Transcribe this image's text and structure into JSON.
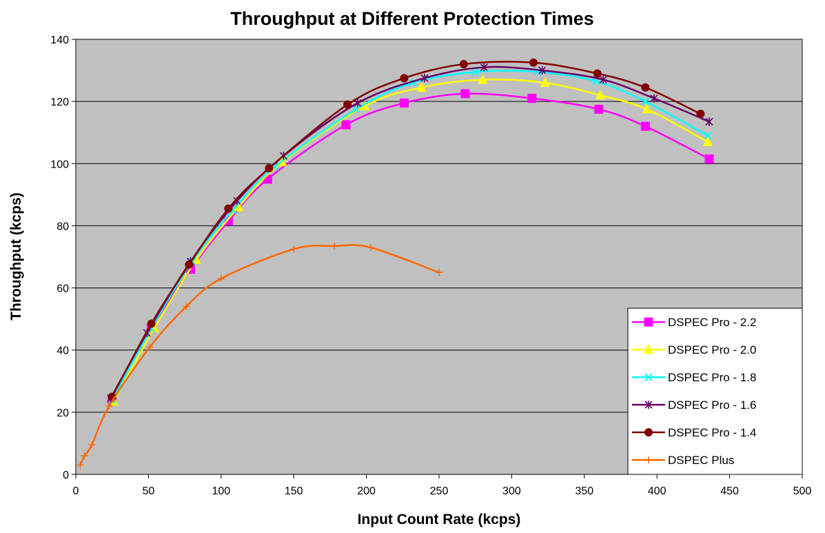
{
  "chart_data": {
    "type": "line",
    "title": "Throughput at Different Protection Times",
    "xlabel": "Input Count Rate (kcps)",
    "ylabel": "Throughput (kcps)",
    "xlim": [
      0,
      500
    ],
    "ylim": [
      0,
      140
    ],
    "xticks": [
      "0",
      "50",
      "100",
      "150",
      "200",
      "250",
      "300",
      "350",
      "400",
      "450",
      "500"
    ],
    "yticks": [
      "0",
      "20",
      "40",
      "60",
      "80",
      "100",
      "120",
      "140"
    ],
    "grid": "horizontal",
    "legend_position": "bottom-right",
    "plot_background": "#c0c0c0",
    "series": [
      {
        "name": "DSPEC Pro - 2.2",
        "color": "#ff00ff",
        "marker": "square",
        "points": [
          [
            25,
            24
          ],
          [
            52,
            47
          ],
          [
            79,
            66
          ],
          [
            105,
            81.5
          ],
          [
            132,
            95
          ],
          [
            186,
            112.5
          ],
          [
            226,
            119.5
          ],
          [
            268,
            122.5
          ],
          [
            314,
            121
          ],
          [
            360,
            117.5
          ],
          [
            392,
            112
          ],
          [
            436,
            101.5
          ]
        ]
      },
      {
        "name": "DSPEC Pro - 2.0",
        "color": "#ffff00",
        "marker": "triangle",
        "points": [
          [
            26,
            23.5
          ],
          [
            54,
            47
          ],
          [
            83,
            69
          ],
          [
            112,
            86
          ],
          [
            142,
            100.5
          ],
          [
            199,
            118.5
          ],
          [
            238,
            124.5
          ],
          [
            280,
            127
          ],
          [
            323,
            126
          ],
          [
            361,
            122
          ],
          [
            393,
            117.5
          ],
          [
            435,
            107
          ]
        ]
      },
      {
        "name": "DSPEC Pro - 1.8",
        "color": "#00ffff",
        "marker": "x",
        "points": [
          [
            25,
            24
          ],
          [
            52,
            47
          ],
          [
            80,
            68.5
          ],
          [
            108,
            85
          ],
          [
            137,
            99
          ],
          [
            193,
            117.5
          ],
          [
            232,
            126
          ],
          [
            275,
            129.5
          ],
          [
            318,
            129.5
          ],
          [
            358,
            126.5
          ],
          [
            392,
            120
          ],
          [
            435,
            109
          ]
        ]
      },
      {
        "name": "DSPEC Pro - 1.6",
        "color": "#660066",
        "marker": "star",
        "points": [
          [
            24,
            24.5
          ],
          [
            49,
            45.5
          ],
          [
            79,
            68.5
          ],
          [
            111,
            88
          ],
          [
            143,
            102.5
          ],
          [
            194,
            119.5
          ],
          [
            240,
            127.5
          ],
          [
            281,
            131
          ],
          [
            321,
            130
          ],
          [
            363,
            127
          ],
          [
            398,
            121
          ],
          [
            436,
            113.5
          ]
        ]
      },
      {
        "name": "DSPEC Pro - 1.4",
        "color": "#800000",
        "marker": "circle",
        "points": [
          [
            25,
            25
          ],
          [
            52,
            48.5
          ],
          [
            78,
            67.5
          ],
          [
            105,
            85.5
          ],
          [
            133,
            98.5
          ],
          [
            187,
            119
          ],
          [
            226,
            127.5
          ],
          [
            267,
            132
          ],
          [
            315,
            132.5
          ],
          [
            359,
            129
          ],
          [
            392,
            124.5
          ],
          [
            430,
            116
          ]
        ]
      },
      {
        "name": "DSPEC Plus",
        "color": "#ff6600",
        "marker": "plus",
        "points": [
          [
            3,
            3
          ],
          [
            6,
            6
          ],
          [
            11,
            9.5
          ],
          [
            23,
            22
          ],
          [
            51,
            41
          ],
          [
            76,
            54
          ],
          [
            100,
            63
          ],
          [
            150,
            72.5
          ],
          [
            178,
            73.5
          ],
          [
            203,
            73
          ],
          [
            250,
            65
          ]
        ]
      }
    ]
  }
}
